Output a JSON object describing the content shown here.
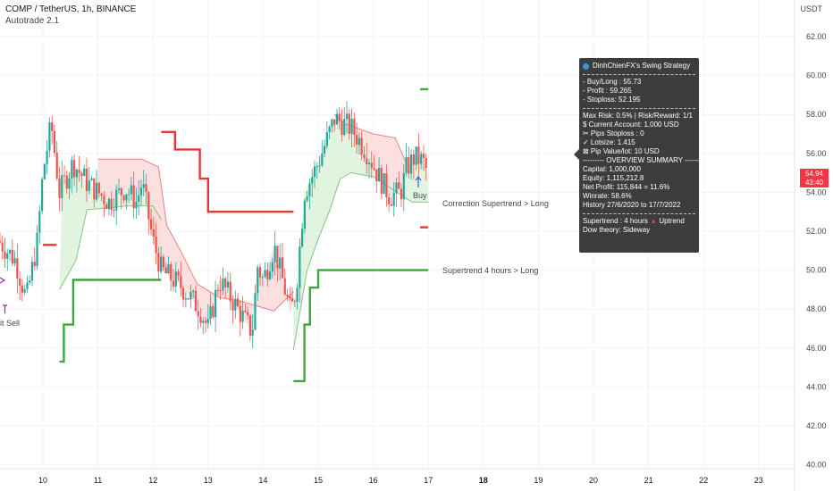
{
  "header": {
    "title": "COMP / TetherUS, 1h, BINANCE",
    "indicator": "Autotrade 2.1"
  },
  "price_axis": {
    "unit": "USDT",
    "current_price": "54.94",
    "countdown": "43:40",
    "tag_color": "#f23645"
  },
  "info_box": {
    "title": "DinhChienFX's Swing Strategy",
    "lines_a": [
      "- Buy/Long   : 55.73",
      "- Profit  : 59.265",
      "- Stoploss: 52.195"
    ],
    "lines_b": [
      "Max Risk: 0.5% | Risk/Reward: 1/1",
      "$ Current Account: 1,000 USD",
      "✂ Pips Stoploss : 0",
      "✓ Lotsize: 1.415",
      "⊠ Pip Value/lot: 10 USD",
      "--------- OVERVIEW SUMMARY ---------",
      "Capital: 1,000,000",
      "Equity: 1,115,212.8",
      "Net Profit: 115,844 = 11.6%",
      "Winrate: 58.6%",
      "History 27/6/2020 to 17/7/2022"
    ],
    "trend_label": "Supertrend : 4 hours",
    "trend_arrow": "▲",
    "trend_value": "Uptrend",
    "dow": "Dow theory: Sideway"
  },
  "labels": {
    "correction": "Correction Supertrend  > Long",
    "supertrend4h": "Supertrend 4 hours > Long",
    "buy": "Buy",
    "exit_sell": "it Sell"
  },
  "colors": {
    "up_candle": "#26a69a",
    "down_candle": "#ef5350",
    "supertrend_green": "#3aa83a",
    "supertrend_red": "#e53935",
    "fill_green": "#d6f0d6",
    "fill_red": "#fbd4d4"
  },
  "chart_data": {
    "type": "candlestick",
    "x_ticks": [
      "10",
      "11",
      "12",
      "13",
      "14",
      "15",
      "16",
      "17",
      "18",
      "19",
      "20",
      "21",
      "22",
      "23"
    ],
    "y_ticks": [
      "40.00",
      "42.00",
      "44.00",
      "46.00",
      "48.00",
      "50.00",
      "52.00",
      "54.00",
      "56.00",
      "58.00",
      "60.00",
      "62.00"
    ],
    "ylim": [
      39.8,
      63.5
    ],
    "series": [
      {
        "name": "Supertrend 4 hours",
        "segments": [
          {
            "color": "red",
            "points": [
              [
                0,
                51.3
              ],
              [
                0.25,
                51.3
              ]
            ]
          },
          {
            "color": "green",
            "points": [
              [
                0.3,
                45.3
              ],
              [
                0.38,
                45.3
              ],
              [
                0.38,
                47.2
              ],
              [
                0.55,
                47.2
              ],
              [
                0.55,
                49.5
              ],
              [
                2.15,
                49.5
              ]
            ]
          },
          {
            "color": "red",
            "points": [
              [
                2.15,
                57.1
              ],
              [
                2.4,
                57.1
              ],
              [
                2.4,
                56.2
              ],
              [
                2.85,
                56.2
              ],
              [
                2.85,
                54.7
              ],
              [
                3.0,
                54.7
              ],
              [
                3.0,
                53.0
              ],
              [
                4.55,
                53.0
              ]
            ]
          },
          {
            "color": "green",
            "points": [
              [
                4.55,
                44.3
              ],
              [
                4.75,
                44.3
              ],
              [
                4.75,
                47.2
              ],
              [
                4.85,
                47.2
              ],
              [
                4.85,
                49.1
              ],
              [
                5.0,
                49.1
              ],
              [
                5.0,
                50.0
              ],
              [
                7.0,
                50.0
              ]
            ]
          },
          {
            "color": "green",
            "points": [
              [
                6.85,
                59.3
              ],
              [
                7.0,
                59.3
              ]
            ]
          },
          {
            "color": "red",
            "points": [
              [
                6.85,
                52.2
              ],
              [
                7.0,
                52.2
              ]
            ]
          }
        ]
      },
      {
        "name": "Correction Supertrend",
        "segments": [
          {
            "color": "green",
            "points": [
              [
                0.3,
                49.0
              ],
              [
                0.6,
                50.5
              ],
              [
                0.7,
                51.8
              ],
              [
                0.8,
                53.1
              ],
              [
                1.2,
                53.2
              ],
              [
                1.5,
                53.3
              ],
              [
                2.0,
                53.3
              ],
              [
                2.15,
                52.6
              ]
            ]
          },
          {
            "color": "red",
            "points": [
              [
                1.0,
                55.7
              ],
              [
                1.8,
                55.7
              ],
              [
                2.1,
                55.3
              ],
              [
                2.25,
                52.3
              ],
              [
                2.5,
                51.0
              ],
              [
                2.8,
                49.3
              ],
              [
                3.2,
                48.6
              ],
              [
                3.6,
                48.4
              ],
              [
                4.2,
                47.9
              ],
              [
                4.55,
                48.9
              ]
            ]
          },
          {
            "color": "green",
            "points": [
              [
                4.55,
                45.9
              ],
              [
                4.8,
                50.0
              ],
              [
                5.0,
                51.6
              ],
              [
                5.2,
                53.0
              ],
              [
                5.4,
                54.7
              ],
              [
                5.6,
                55.0
              ],
              [
                6.0,
                54.8
              ],
              [
                6.7,
                53.5
              ],
              [
                7.0,
                53.5
              ]
            ]
          },
          {
            "color": "red",
            "points": [
              [
                5.3,
                58.0
              ],
              [
                5.5,
                57.5
              ],
              [
                6.0,
                57.0
              ],
              [
                6.4,
                56.8
              ],
              [
                6.6,
                55.5
              ]
            ]
          }
        ]
      }
    ]
  }
}
